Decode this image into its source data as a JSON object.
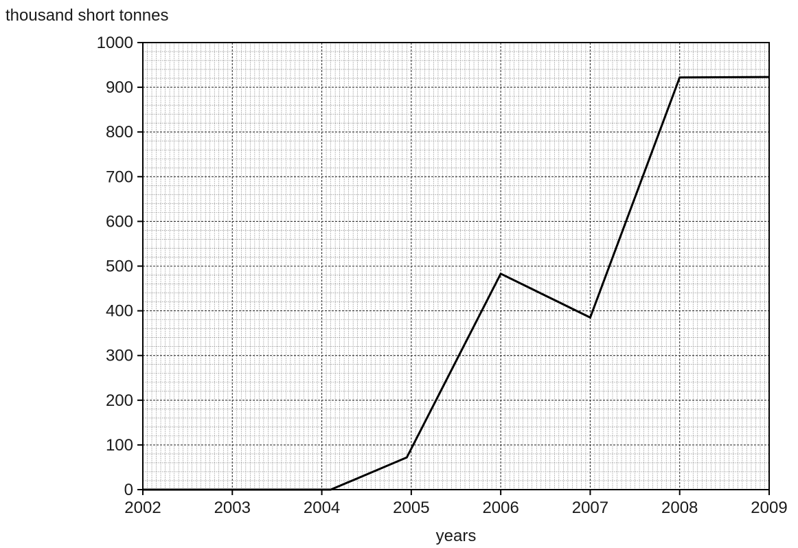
{
  "chart_data": {
    "type": "line",
    "title": "",
    "ylabel": "thousand short tonnes",
    "xlabel": "years",
    "x_ticks": [
      "2002",
      "2003",
      "2004",
      "2005",
      "2006",
      "2007",
      "2008",
      "2009"
    ],
    "y_ticks": [
      "0",
      "100",
      "200",
      "300",
      "400",
      "500",
      "600",
      "700",
      "800",
      "900",
      "1000"
    ],
    "xlim": [
      2002,
      2009
    ],
    "ylim": [
      0,
      1000
    ],
    "grid": true,
    "series": [
      {
        "color": "#000000",
        "points": [
          {
            "x": 2002.0,
            "y": 0
          },
          {
            "x": 2004.1,
            "y": 0
          },
          {
            "x": 2004.95,
            "y": 72
          },
          {
            "x": 2006.0,
            "y": 483
          },
          {
            "x": 2007.0,
            "y": 385
          },
          {
            "x": 2008.0,
            "y": 922
          },
          {
            "x": 2009.0,
            "y": 923
          }
        ]
      }
    ]
  }
}
